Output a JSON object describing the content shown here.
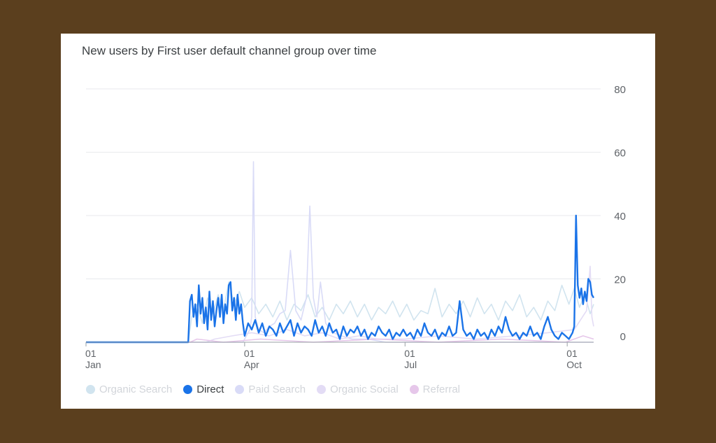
{
  "chart_data": {
    "type": "line",
    "title": "New users by First user default channel group over time",
    "xlabel": "",
    "ylabel": "",
    "ylim": [
      0,
      80
    ],
    "yticks": [
      0,
      20,
      40,
      60,
      80
    ],
    "grid": true,
    "legend_position": "bottom-left",
    "xrange": [
      "2023-01-01",
      "2023-10-16"
    ],
    "xticks": [
      {
        "date": "2023-01-01",
        "day": "01",
        "month": "Jan"
      },
      {
        "date": "2023-04-01",
        "day": "01",
        "month": "Apr"
      },
      {
        "date": "2023-07-01",
        "day": "01",
        "month": "Jul"
      },
      {
        "date": "2023-10-01",
        "day": "01",
        "month": "Oct"
      }
    ],
    "series": [
      {
        "name": "Organic Search",
        "color": "#d1e4ef",
        "active": false,
        "points": [
          [
            "2023-01-01",
            0
          ],
          [
            "2023-02-28",
            0
          ],
          [
            "2023-03-02",
            8
          ],
          [
            "2023-03-05",
            12
          ],
          [
            "2023-03-08",
            6
          ],
          [
            "2023-03-11",
            14
          ],
          [
            "2023-03-14",
            9
          ],
          [
            "2023-03-17",
            15
          ],
          [
            "2023-03-20",
            10
          ],
          [
            "2023-03-23",
            19
          ],
          [
            "2023-03-26",
            12
          ],
          [
            "2023-03-29",
            16
          ],
          [
            "2023-04-01",
            11
          ],
          [
            "2023-04-05",
            14
          ],
          [
            "2023-04-09",
            9
          ],
          [
            "2023-04-13",
            12
          ],
          [
            "2023-04-17",
            8
          ],
          [
            "2023-04-21",
            13
          ],
          [
            "2023-04-25",
            7
          ],
          [
            "2023-04-29",
            12
          ],
          [
            "2023-05-03",
            10
          ],
          [
            "2023-05-07",
            15
          ],
          [
            "2023-05-11",
            8
          ],
          [
            "2023-05-15",
            11
          ],
          [
            "2023-05-19",
            7
          ],
          [
            "2023-05-23",
            12
          ],
          [
            "2023-05-27",
            9
          ],
          [
            "2023-05-31",
            13
          ],
          [
            "2023-06-04",
            8
          ],
          [
            "2023-06-08",
            12
          ],
          [
            "2023-06-12",
            7
          ],
          [
            "2023-06-16",
            11
          ],
          [
            "2023-06-20",
            9
          ],
          [
            "2023-06-24",
            13
          ],
          [
            "2023-06-28",
            8
          ],
          [
            "2023-07-02",
            12
          ],
          [
            "2023-07-06",
            7
          ],
          [
            "2023-07-10",
            10
          ],
          [
            "2023-07-14",
            9
          ],
          [
            "2023-07-18",
            17
          ],
          [
            "2023-07-22",
            8
          ],
          [
            "2023-07-26",
            12
          ],
          [
            "2023-07-30",
            9
          ],
          [
            "2023-08-03",
            13
          ],
          [
            "2023-08-07",
            8
          ],
          [
            "2023-08-11",
            14
          ],
          [
            "2023-08-15",
            9
          ],
          [
            "2023-08-19",
            12
          ],
          [
            "2023-08-23",
            7
          ],
          [
            "2023-08-27",
            13
          ],
          [
            "2023-08-31",
            10
          ],
          [
            "2023-09-04",
            15
          ],
          [
            "2023-09-08",
            8
          ],
          [
            "2023-09-12",
            11
          ],
          [
            "2023-09-16",
            7
          ],
          [
            "2023-09-20",
            13
          ],
          [
            "2023-09-24",
            10
          ],
          [
            "2023-09-28",
            18
          ],
          [
            "2023-10-02",
            12
          ],
          [
            "2023-10-05",
            17
          ],
          [
            "2023-10-08",
            11
          ],
          [
            "2023-10-11",
            15
          ],
          [
            "2023-10-14",
            9
          ],
          [
            "2023-10-16",
            12
          ]
        ]
      },
      {
        "name": "Direct",
        "color": "#1a73e8",
        "active": true,
        "points": [
          [
            "2023-01-01",
            0
          ],
          [
            "2023-02-28",
            0
          ],
          [
            "2023-03-01",
            13
          ],
          [
            "2023-03-02",
            15
          ],
          [
            "2023-03-03",
            8
          ],
          [
            "2023-03-04",
            12
          ],
          [
            "2023-03-05",
            5
          ],
          [
            "2023-03-06",
            18
          ],
          [
            "2023-03-07",
            9
          ],
          [
            "2023-03-08",
            14
          ],
          [
            "2023-03-09",
            6
          ],
          [
            "2023-03-10",
            11
          ],
          [
            "2023-03-11",
            4
          ],
          [
            "2023-03-12",
            16
          ],
          [
            "2023-03-13",
            7
          ],
          [
            "2023-03-14",
            13
          ],
          [
            "2023-03-15",
            5
          ],
          [
            "2023-03-16",
            10
          ],
          [
            "2023-03-17",
            14
          ],
          [
            "2023-03-18",
            8
          ],
          [
            "2023-03-19",
            15
          ],
          [
            "2023-03-20",
            6
          ],
          [
            "2023-03-21",
            12
          ],
          [
            "2023-03-22",
            9
          ],
          [
            "2023-03-23",
            18
          ],
          [
            "2023-03-24",
            19
          ],
          [
            "2023-03-25",
            10
          ],
          [
            "2023-03-26",
            14
          ],
          [
            "2023-03-27",
            7
          ],
          [
            "2023-03-28",
            15
          ],
          [
            "2023-03-29",
            9
          ],
          [
            "2023-03-30",
            12
          ],
          [
            "2023-03-31",
            6
          ],
          [
            "2023-04-01",
            2
          ],
          [
            "2023-04-03",
            6
          ],
          [
            "2023-04-05",
            4
          ],
          [
            "2023-04-07",
            7
          ],
          [
            "2023-04-09",
            3
          ],
          [
            "2023-04-11",
            6
          ],
          [
            "2023-04-13",
            2
          ],
          [
            "2023-04-15",
            5
          ],
          [
            "2023-04-17",
            4
          ],
          [
            "2023-04-19",
            2
          ],
          [
            "2023-04-21",
            6
          ],
          [
            "2023-04-23",
            3
          ],
          [
            "2023-04-25",
            5
          ],
          [
            "2023-04-27",
            7
          ],
          [
            "2023-04-29",
            2
          ],
          [
            "2023-05-01",
            6
          ],
          [
            "2023-05-03",
            3
          ],
          [
            "2023-05-05",
            5
          ],
          [
            "2023-05-07",
            4
          ],
          [
            "2023-05-09",
            2
          ],
          [
            "2023-05-11",
            7
          ],
          [
            "2023-05-13",
            3
          ],
          [
            "2023-05-15",
            5
          ],
          [
            "2023-05-17",
            2
          ],
          [
            "2023-05-19",
            6
          ],
          [
            "2023-05-21",
            3
          ],
          [
            "2023-05-23",
            4
          ],
          [
            "2023-05-25",
            1
          ],
          [
            "2023-05-27",
            5
          ],
          [
            "2023-05-29",
            2
          ],
          [
            "2023-05-31",
            4
          ],
          [
            "2023-06-02",
            3
          ],
          [
            "2023-06-04",
            5
          ],
          [
            "2023-06-06",
            2
          ],
          [
            "2023-06-08",
            4
          ],
          [
            "2023-06-10",
            1
          ],
          [
            "2023-06-12",
            3
          ],
          [
            "2023-06-14",
            2
          ],
          [
            "2023-06-16",
            5
          ],
          [
            "2023-06-18",
            3
          ],
          [
            "2023-06-20",
            2
          ],
          [
            "2023-06-22",
            4
          ],
          [
            "2023-06-24",
            1
          ],
          [
            "2023-06-26",
            3
          ],
          [
            "2023-06-28",
            2
          ],
          [
            "2023-06-30",
            4
          ],
          [
            "2023-07-02",
            2
          ],
          [
            "2023-07-04",
            3
          ],
          [
            "2023-07-06",
            1
          ],
          [
            "2023-07-08",
            4
          ],
          [
            "2023-07-10",
            2
          ],
          [
            "2023-07-12",
            6
          ],
          [
            "2023-07-14",
            3
          ],
          [
            "2023-07-16",
            2
          ],
          [
            "2023-07-18",
            4
          ],
          [
            "2023-07-20",
            1
          ],
          [
            "2023-07-22",
            3
          ],
          [
            "2023-07-24",
            2
          ],
          [
            "2023-07-26",
            5
          ],
          [
            "2023-07-28",
            2
          ],
          [
            "2023-07-30",
            3
          ],
          [
            "2023-08-01",
            13
          ],
          [
            "2023-08-03",
            4
          ],
          [
            "2023-08-05",
            2
          ],
          [
            "2023-08-07",
            3
          ],
          [
            "2023-08-09",
            1
          ],
          [
            "2023-08-11",
            4
          ],
          [
            "2023-08-13",
            2
          ],
          [
            "2023-08-15",
            3
          ],
          [
            "2023-08-17",
            1
          ],
          [
            "2023-08-19",
            4
          ],
          [
            "2023-08-21",
            2
          ],
          [
            "2023-08-23",
            5
          ],
          [
            "2023-08-25",
            3
          ],
          [
            "2023-08-27",
            8
          ],
          [
            "2023-08-29",
            4
          ],
          [
            "2023-08-31",
            2
          ],
          [
            "2023-09-02",
            3
          ],
          [
            "2023-09-04",
            1
          ],
          [
            "2023-09-06",
            3
          ],
          [
            "2023-09-08",
            2
          ],
          [
            "2023-09-10",
            5
          ],
          [
            "2023-09-12",
            2
          ],
          [
            "2023-09-14",
            3
          ],
          [
            "2023-09-16",
            1
          ],
          [
            "2023-09-18",
            5
          ],
          [
            "2023-09-20",
            8
          ],
          [
            "2023-09-22",
            4
          ],
          [
            "2023-09-24",
            2
          ],
          [
            "2023-09-26",
            1
          ],
          [
            "2023-09-28",
            3
          ],
          [
            "2023-09-30",
            2
          ],
          [
            "2023-10-02",
            1
          ],
          [
            "2023-10-04",
            3
          ],
          [
            "2023-10-05",
            5
          ],
          [
            "2023-10-06",
            40
          ],
          [
            "2023-10-07",
            18
          ],
          [
            "2023-10-08",
            14
          ],
          [
            "2023-10-09",
            17
          ],
          [
            "2023-10-10",
            12
          ],
          [
            "2023-10-11",
            16
          ],
          [
            "2023-10-12",
            13
          ],
          [
            "2023-10-13",
            20
          ],
          [
            "2023-10-14",
            19
          ],
          [
            "2023-10-15",
            15
          ],
          [
            "2023-10-16",
            14
          ]
        ]
      },
      {
        "name": "Paid Search",
        "color": "#d9dbf7",
        "active": false,
        "points": [
          [
            "2023-01-01",
            0
          ],
          [
            "2023-03-31",
            0
          ],
          [
            "2023-04-02",
            2
          ],
          [
            "2023-04-04",
            4
          ],
          [
            "2023-04-05",
            8
          ],
          [
            "2023-04-06",
            57
          ],
          [
            "2023-04-07",
            8
          ],
          [
            "2023-04-09",
            4
          ],
          [
            "2023-04-12",
            3
          ],
          [
            "2023-04-15",
            5
          ],
          [
            "2023-04-18",
            6
          ],
          [
            "2023-04-21",
            9
          ],
          [
            "2023-04-24",
            10
          ],
          [
            "2023-04-27",
            29
          ],
          [
            "2023-04-30",
            10
          ],
          [
            "2023-05-03",
            7
          ],
          [
            "2023-05-06",
            14
          ],
          [
            "2023-05-08",
            43
          ],
          [
            "2023-05-10",
            14
          ],
          [
            "2023-05-12",
            8
          ],
          [
            "2023-05-14",
            19
          ],
          [
            "2023-05-17",
            6
          ],
          [
            "2023-05-21",
            3
          ],
          [
            "2023-05-26",
            2
          ],
          [
            "2023-06-01",
            1
          ],
          [
            "2023-06-10",
            1
          ],
          [
            "2023-06-20",
            0
          ],
          [
            "2023-10-16",
            0
          ]
        ]
      },
      {
        "name": "Organic Social",
        "color": "#e3dcf5",
        "active": false,
        "points": [
          [
            "2023-01-01",
            0
          ],
          [
            "2023-03-10",
            0
          ],
          [
            "2023-03-15",
            1
          ],
          [
            "2023-03-25",
            2
          ],
          [
            "2023-04-05",
            3
          ],
          [
            "2023-04-15",
            2
          ],
          [
            "2023-04-25",
            4
          ],
          [
            "2023-05-05",
            2
          ],
          [
            "2023-05-15",
            3
          ],
          [
            "2023-05-25",
            1
          ],
          [
            "2023-06-05",
            2
          ],
          [
            "2023-06-15",
            1
          ],
          [
            "2023-07-01",
            1
          ],
          [
            "2023-07-20",
            2
          ],
          [
            "2023-08-10",
            1
          ],
          [
            "2023-09-01",
            2
          ],
          [
            "2023-09-20",
            3
          ],
          [
            "2023-10-05",
            4
          ],
          [
            "2023-10-12",
            10
          ],
          [
            "2023-10-14",
            24
          ],
          [
            "2023-10-15",
            8
          ],
          [
            "2023-10-16",
            5
          ]
        ]
      },
      {
        "name": "Referral",
        "color": "#e6c7ea",
        "active": false,
        "points": [
          [
            "2023-01-01",
            0
          ],
          [
            "2023-03-01",
            0
          ],
          [
            "2023-03-05",
            1
          ],
          [
            "2023-03-20",
            0
          ],
          [
            "2023-04-10",
            1
          ],
          [
            "2023-05-10",
            0
          ],
          [
            "2023-06-15",
            1
          ],
          [
            "2023-07-20",
            0
          ],
          [
            "2023-08-25",
            1
          ],
          [
            "2023-09-30",
            0
          ],
          [
            "2023-10-10",
            2
          ],
          [
            "2023-10-16",
            1
          ]
        ]
      }
    ]
  }
}
